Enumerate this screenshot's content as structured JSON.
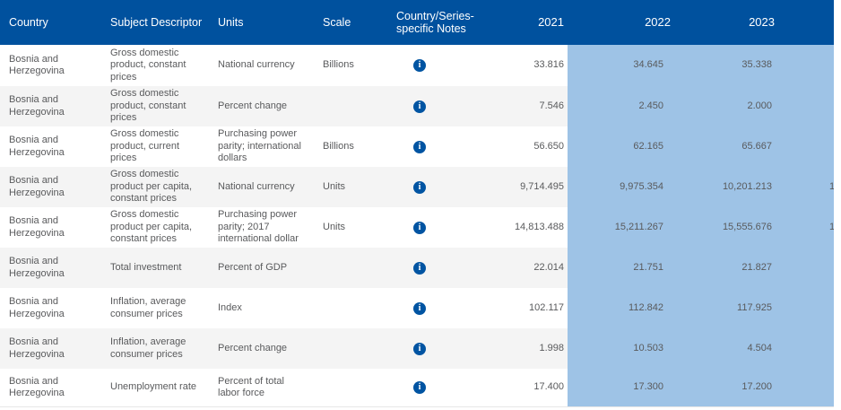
{
  "colors": {
    "header_bg": "#00519e",
    "header_text": "#ffffff",
    "highlight": "#9ec3e6",
    "alt_row_bg": "#f4f4f4",
    "body_text": "#595a5c",
    "info_icon": "#0054a2"
  },
  "header": {
    "country": "Country",
    "subject": "Subject Descriptor",
    "units": "Units",
    "scale": "Scale",
    "notes": "Country/Series-specific Notes",
    "y2021": "2021",
    "y2022": "2022",
    "y2023": "2023",
    "y2024": ""
  },
  "notes_icon": "info-icon",
  "rows": [
    {
      "country": "Bosnia and Herzegovina",
      "subject": "Gross domestic product, constant prices",
      "units": "National currency",
      "scale": "Billions",
      "y2021": "33.816",
      "y2022": "34.645",
      "y2023": "35.338",
      "y2024_partial": ""
    },
    {
      "country": "Bosnia and Herzegovina",
      "subject": "Gross domestic product, constant prices",
      "units": "Percent change",
      "scale": "",
      "y2021": "7.546",
      "y2022": "2.450",
      "y2023": "2.000",
      "y2024_partial": ""
    },
    {
      "country": "Bosnia and Herzegovina",
      "subject": "Gross domestic product, current prices",
      "units": "Purchasing power parity; international dollars",
      "scale": "Billions",
      "y2021": "56.650",
      "y2022": "62.165",
      "y2023": "65.667",
      "y2024_partial": ""
    },
    {
      "country": "Bosnia and Herzegovina",
      "subject": "Gross domestic product per capita, constant prices",
      "units": "National currency",
      "scale": "Units",
      "y2021": "9,714.495",
      "y2022": "9,975.354",
      "y2023": "10,201.213",
      "y2024_partial": "1"
    },
    {
      "country": "Bosnia and Herzegovina",
      "subject": "Gross domestic product per capita, constant prices",
      "units": "Purchasing power parity; 2017 international dollar",
      "scale": "Units",
      "y2021": "14,813.488",
      "y2022": "15,211.267",
      "y2023": "15,555.676",
      "y2024_partial": "1"
    },
    {
      "country": "Bosnia and Herzegovina",
      "subject": "Total investment",
      "units": "Percent of GDP",
      "scale": "",
      "y2021": "22.014",
      "y2022": "21.751",
      "y2023": "21.827",
      "y2024_partial": ""
    },
    {
      "country": "Bosnia and Herzegovina",
      "subject": "Inflation, average consumer prices",
      "units": "Index",
      "scale": "",
      "y2021": "102.117",
      "y2022": "112.842",
      "y2023": "117.925",
      "y2024_partial": ""
    },
    {
      "country": "Bosnia and Herzegovina",
      "subject": "Inflation, average consumer prices",
      "units": "Percent change",
      "scale": "",
      "y2021": "1.998",
      "y2022": "10.503",
      "y2023": "4.504",
      "y2024_partial": ""
    },
    {
      "country": "Bosnia and Herzegovina",
      "subject": "Unemployment rate",
      "units": "Percent of total labor force",
      "scale": "",
      "y2021": "17.400",
      "y2022": "17.300",
      "y2023": "17.200",
      "y2024_partial": ""
    }
  ]
}
